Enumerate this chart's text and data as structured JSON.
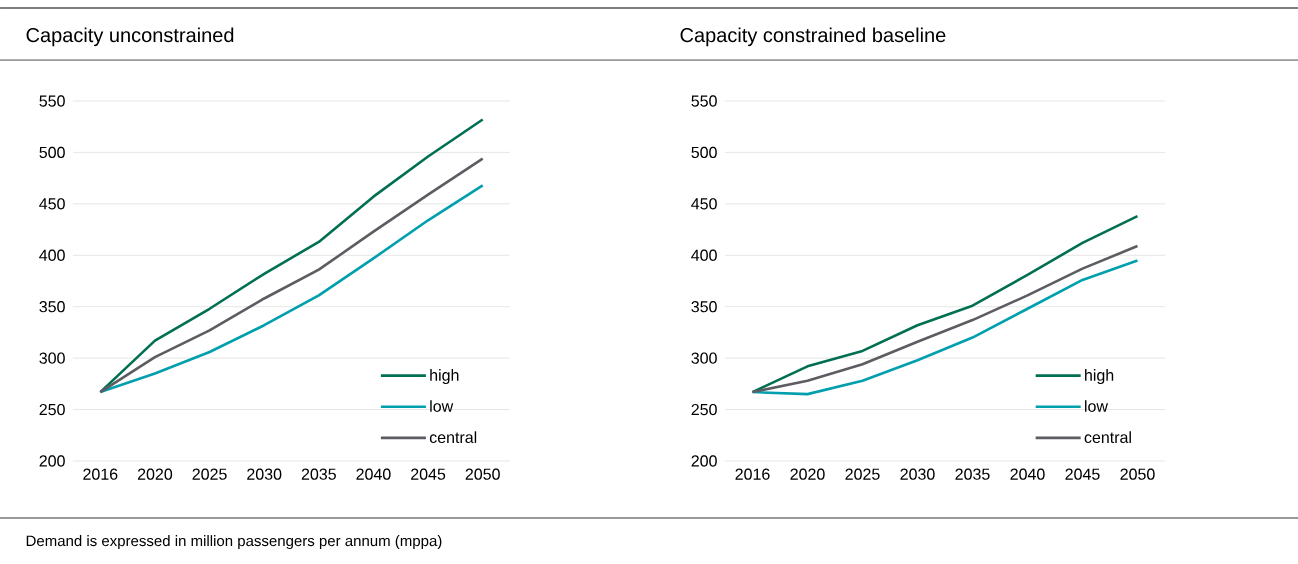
{
  "chart_data": [
    {
      "type": "line",
      "title": "Capacity unconstrained",
      "categories": [
        "2016",
        "2020",
        "2025",
        "2030",
        "2035",
        "2040",
        "2045",
        "2050"
      ],
      "series": [
        {
          "name": "high",
          "color": "#006f52",
          "values": [
            267,
            317,
            348,
            382,
            413,
            457,
            496,
            532
          ]
        },
        {
          "name": "low",
          "color": "#009fad",
          "values": [
            267,
            285,
            306,
            332,
            361,
            397,
            434,
            468
          ]
        },
        {
          "name": "central",
          "color": "#5c5c63",
          "values": [
            267,
            301,
            327,
            358,
            386,
            423,
            459,
            494
          ]
        }
      ],
      "ylim": [
        200,
        550
      ],
      "yticks": [
        200,
        250,
        300,
        350,
        400,
        450,
        500,
        550
      ],
      "grid": "y",
      "legend": "bottom right",
      "annotations": [
        "Demand is expressed in million passengers per annum (mppa)"
      ]
    },
    {
      "type": "line",
      "title": "Capacity constrained baseline",
      "categories": [
        "2016",
        "2020",
        "2025",
        "2030",
        "2035",
        "2040",
        "2045",
        "2050"
      ],
      "series": [
        {
          "name": "high",
          "color": "#006f52",
          "values": [
            267,
            292,
            307,
            332,
            351,
            381,
            412,
            438
          ]
        },
        {
          "name": "low",
          "color": "#009fad",
          "values": [
            267,
            265,
            278,
            298,
            320,
            348,
            376,
            395
          ]
        },
        {
          "name": "central",
          "color": "#5c5c63",
          "values": [
            267,
            278,
            294,
            316,
            337,
            361,
            387,
            409
          ]
        }
      ],
      "ylim": [
        200,
        550
      ],
      "yticks": [
        200,
        250,
        300,
        350,
        400,
        450,
        500,
        550
      ],
      "grid": "y",
      "legend": "bottom right"
    }
  ]
}
